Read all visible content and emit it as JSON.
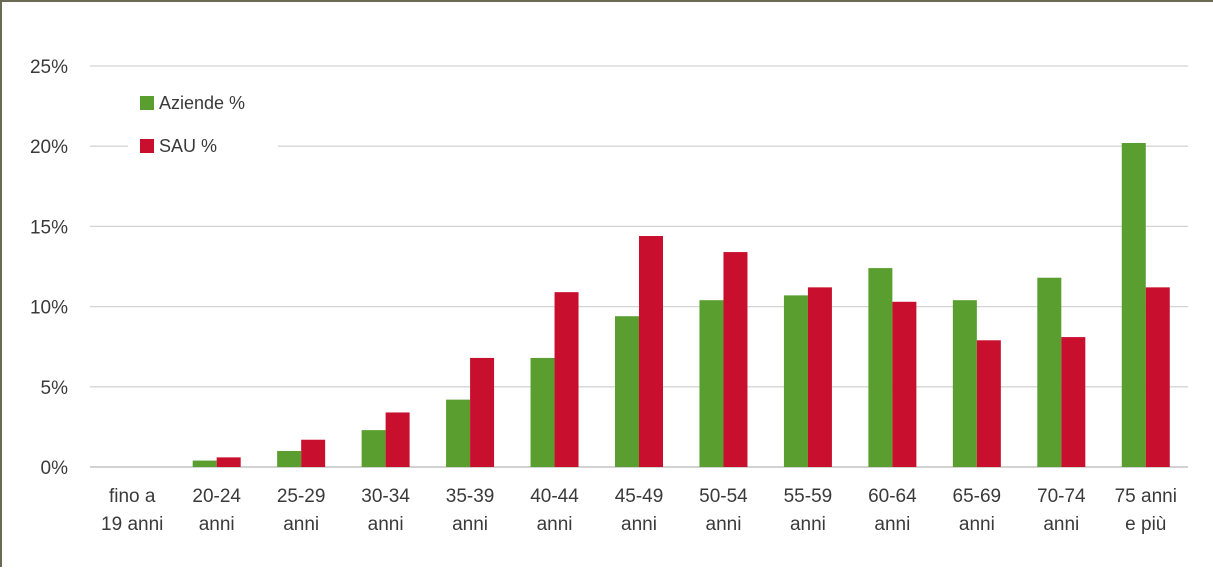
{
  "chart_data": {
    "type": "bar",
    "categories": [
      [
        "fino a",
        "19 anni"
      ],
      [
        "20-24",
        "anni"
      ],
      [
        "25-29",
        "anni"
      ],
      [
        "30-34",
        "anni"
      ],
      [
        "35-39",
        "anni"
      ],
      [
        "40-44",
        "anni"
      ],
      [
        "45-49",
        "anni"
      ],
      [
        "50-54",
        "anni"
      ],
      [
        "55-59",
        "anni"
      ],
      [
        "60-64",
        "anni"
      ],
      [
        "65-69",
        "anni"
      ],
      [
        "70-74",
        "anni"
      ],
      [
        "75 anni",
        "e più"
      ]
    ],
    "series": [
      {
        "name": "Aziende %",
        "color": "#5a9e2f",
        "values": [
          0.0,
          0.4,
          1.0,
          2.3,
          4.2,
          6.8,
          9.4,
          10.4,
          10.7,
          12.4,
          10.4,
          11.8,
          20.2
        ]
      },
      {
        "name": "SAU %",
        "color": "#c8102e",
        "values": [
          0.0,
          0.6,
          1.7,
          3.4,
          6.8,
          10.9,
          14.4,
          13.4,
          11.2,
          10.3,
          7.9,
          8.1,
          11.2
        ]
      }
    ],
    "ylim": [
      0,
      25
    ],
    "yticks": [
      0,
      5,
      10,
      15,
      20,
      25
    ],
    "ytick_labels": [
      "0%",
      "5%",
      "10%",
      "15%",
      "20%",
      "25%"
    ],
    "grid": true,
    "legend_position": "top-left",
    "title": "",
    "xlabel": "",
    "ylabel": ""
  }
}
